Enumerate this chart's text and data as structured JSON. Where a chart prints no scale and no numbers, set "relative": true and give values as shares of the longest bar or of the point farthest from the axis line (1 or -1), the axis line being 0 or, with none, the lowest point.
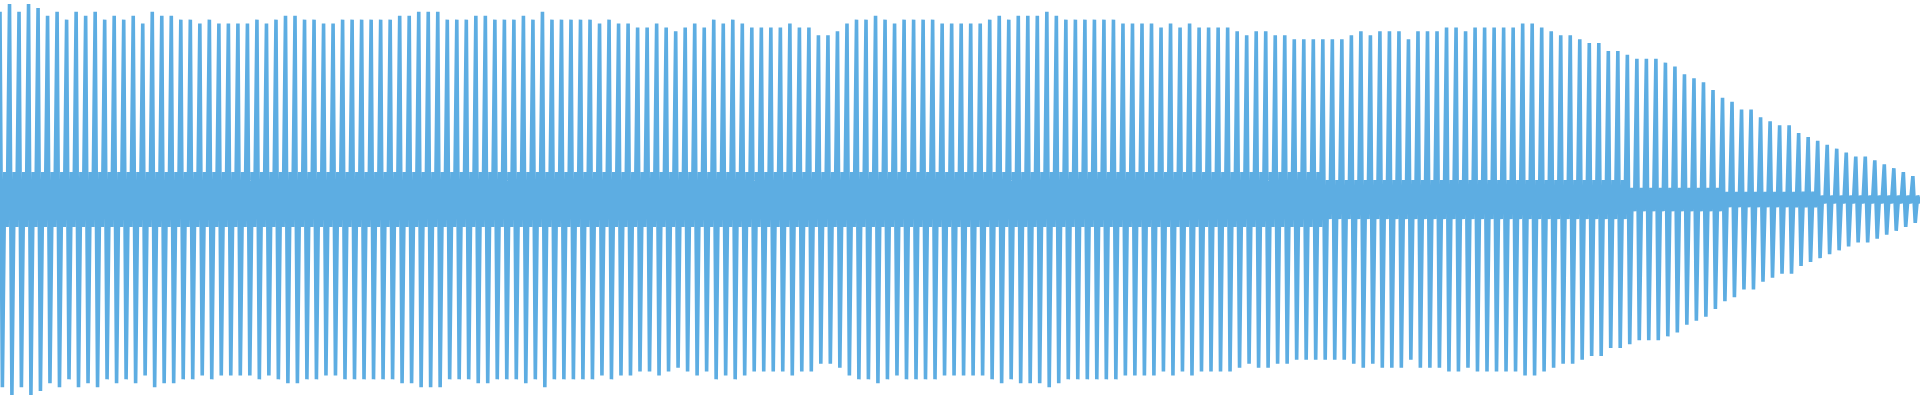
{
  "chart_data": {
    "type": "line",
    "relative": true,
    "categories": [
      null,
      null,
      null,
      null,
      null,
      null,
      null,
      null,
      null,
      null,
      null,
      null,
      null,
      null,
      null,
      null,
      null,
      null,
      null,
      null,
      null,
      null,
      null,
      null,
      null,
      null,
      null,
      null,
      null,
      null,
      null,
      null,
      null,
      null,
      null,
      null,
      null,
      null,
      null,
      null,
      null,
      null,
      null,
      null,
      null,
      null,
      null,
      null,
      null,
      null,
      null,
      null,
      null,
      null,
      null,
      null,
      null,
      null,
      null,
      null,
      null,
      null,
      null,
      null,
      null,
      null,
      null,
      null,
      null,
      null,
      null,
      null,
      null,
      null,
      null,
      null,
      null,
      null,
      null,
      null,
      null,
      null,
      null,
      null,
      null,
      null,
      null,
      null,
      null,
      null,
      null,
      null,
      null,
      null,
      null,
      null,
      null,
      null,
      null,
      null,
      null,
      null,
      null,
      null,
      null,
      null,
      null,
      null,
      null,
      null,
      null,
      null,
      null,
      null,
      null,
      null,
      null,
      null,
      null,
      null,
      null,
      null,
      null,
      null,
      null,
      null,
      null,
      null,
      null,
      null,
      null,
      null,
      null,
      null,
      null,
      null,
      null,
      null,
      null,
      null,
      null,
      null,
      null,
      null,
      null,
      null,
      null,
      null,
      null,
      null,
      null,
      null,
      null,
      null,
      null,
      null,
      null,
      null,
      null,
      null,
      null,
      null,
      null,
      null,
      null,
      null,
      null,
      null,
      null,
      null,
      null,
      null,
      null,
      null,
      null,
      null,
      null,
      null,
      null,
      null,
      null,
      null,
      null,
      null,
      null,
      null,
      null,
      null,
      null,
      null,
      null,
      null,
      null,
      null,
      null,
      null,
      null,
      null,
      null,
      null,
      null,
      null,
      null,
      null,
      null,
      null,
      null,
      null,
      null,
      null,
      null,
      null,
      null,
      null,
      null,
      null,
      null,
      null,
      null,
      null,
      null,
      null,
      null,
      null,
      null,
      null,
      null,
      null,
      null,
      null,
      null,
      null,
      null,
      null,
      null,
      null,
      null,
      null,
      null,
      null,
      null,
      null,
      null,
      null,
      null,
      null,
      null,
      null,
      null,
      null,
      null,
      null,
      null,
      null,
      null,
      null,
      null,
      null,
      null,
      null,
      null,
      null,
      null,
      null,
      null,
      null,
      null,
      null,
      null,
      null,
      null,
      null,
      null,
      null,
      null,
      null,
      null,
      null,
      null,
      null,
      null,
      null,
      null,
      null,
      null,
      null,
      null,
      null,
      null,
      null,
      null,
      null,
      null,
      null,
      null,
      null,
      null,
      null,
      null,
      null,
      null,
      null,
      null,
      null,
      null,
      null,
      null,
      null,
      null,
      null,
      null,
      null,
      null,
      null,
      null,
      null,
      null,
      null,
      null,
      null,
      null,
      null,
      null,
      null,
      null,
      null,
      null,
      null,
      null,
      null,
      null,
      null,
      null,
      null,
      null,
      null,
      null,
      null,
      null,
      null,
      null,
      null,
      null,
      null,
      null,
      null,
      null,
      null,
      null,
      null,
      null,
      null,
      null,
      null,
      null,
      null,
      null,
      null,
      null,
      null,
      null,
      null,
      null,
      null,
      null,
      null,
      null,
      null,
      null,
      null,
      null,
      null,
      null,
      null,
      null,
      null,
      null,
      null,
      null,
      null,
      null,
      null,
      null,
      null,
      null,
      null,
      null,
      null,
      null,
      null,
      null,
      null,
      null,
      null,
      null,
      null,
      null,
      null,
      null,
      null,
      null,
      null,
      null,
      null,
      null,
      null,
      null,
      null,
      null,
      null,
      null,
      null,
      null,
      null,
      null,
      null,
      null,
      null,
      null,
      null,
      null,
      null,
      null,
      null,
      null,
      null,
      null,
      null,
      null,
      null,
      null,
      null,
      null,
      null,
      null,
      null,
      null,
      null,
      null,
      null,
      null,
      null,
      null,
      null,
      null,
      null,
      null,
      null,
      null,
      null,
      null,
      null,
      null,
      null,
      null,
      null,
      null,
      null,
      null,
      null,
      null,
      null,
      null,
      null,
      null,
      null,
      null,
      null,
      null,
      null,
      null,
      null,
      null,
      null,
      null,
      null,
      null,
      null,
      null,
      null,
      null,
      null,
      null,
      null,
      null,
      null,
      null,
      null,
      null,
      null,
      null,
      null,
      null,
      null,
      null,
      null,
      null,
      null,
      null,
      null,
      null,
      null,
      null,
      null,
      null,
      null,
      null,
      null,
      null,
      null,
      null,
      null,
      null,
      null,
      null,
      null,
      null,
      null,
      null,
      null,
      null,
      null,
      null,
      null,
      null,
      null,
      null,
      null,
      null,
      null,
      null,
      null,
      null,
      null,
      null,
      null,
      null,
      null,
      null,
      null,
      null,
      null,
      null,
      null,
      null,
      null,
      null,
      null,
      null,
      null,
      null,
      null,
      null,
      null,
      null,
      null,
      null,
      null,
      null,
      null,
      null,
      null,
      null,
      null,
      null,
      null,
      null,
      null,
      null,
      null,
      null,
      null,
      null,
      null,
      null,
      null,
      null,
      null,
      null,
      null,
      null,
      null,
      null,
      null,
      null,
      null,
      null,
      null,
      null,
      null,
      null,
      null,
      null,
      null,
      null,
      null,
      null,
      null,
      null,
      null,
      null,
      null,
      null,
      null,
      null,
      null,
      null,
      null,
      null,
      null,
      null,
      null,
      null,
      null,
      null,
      null,
      null,
      null,
      null,
      null,
      null,
      null,
      null,
      null,
      null,
      null,
      null,
      null,
      null,
      null,
      null,
      null,
      null,
      null,
      null,
      null,
      null,
      null,
      null,
      null,
      null,
      null,
      null,
      null,
      null,
      null,
      null,
      null,
      null,
      null,
      null,
      null,
      null,
      null,
      null,
      null,
      null,
      null,
      null,
      null,
      null,
      null,
      null,
      null,
      null,
      null,
      null,
      null,
      null,
      null,
      null,
      null,
      null,
      null,
      null,
      null,
      null,
      null,
      null,
      null,
      null,
      null,
      null,
      null,
      null,
      null,
      null,
      null,
      null,
      null,
      null,
      null,
      null,
      null,
      null,
      null,
      null,
      null,
      null,
      null,
      null,
      null,
      null,
      null,
      null,
      null,
      null,
      null,
      null,
      null,
      null,
      null,
      null,
      null,
      null,
      null,
      null,
      null,
      null,
      null,
      null,
      null,
      null,
      null,
      null,
      null,
      null,
      null,
      null,
      null,
      null,
      null,
      null,
      null,
      null,
      null,
      null,
      null,
      null,
      null,
      null,
      null,
      null,
      null,
      null,
      null,
      null,
      null,
      null,
      null,
      null,
      null,
      null,
      null,
      null,
      null,
      null,
      null,
      null,
      null,
      null,
      null,
      null,
      null,
      null,
      null,
      null,
      null,
      null,
      null,
      null,
      null,
      null,
      null,
      null,
      null,
      null,
      null,
      null,
      null,
      null,
      null,
      null,
      null,
      null,
      null,
      null,
      null,
      null,
      null,
      null,
      null,
      null,
      null,
      null,
      null,
      null,
      null,
      null,
      null,
      null,
      null,
      null,
      null,
      null,
      null,
      null,
      null
    ],
    "series": [
      {
        "color": "#5dade2",
        "values": [
          0.98,
          0.02,
          0.57,
          0.43,
          1,
          0,
          0.57,
          0.43,
          0.98,
          0.02,
          0.57,
          0.43,
          1,
          0,
          0.57,
          0.43,
          0.99,
          0.01,
          0.57,
          0.43,
          0.97,
          0.03,
          0.57,
          0.43,
          0.98,
          0.02,
          0.57,
          0.43,
          0.96,
          0.04,
          0.57,
          0.43,
          0.98,
          0.02,
          0.57,
          0.43,
          0.97,
          0.03,
          0.57,
          0.43,
          0.98,
          0.02,
          0.57,
          0.43,
          0.96,
          0.04,
          0.57,
          0.43,
          0.97,
          0.03,
          0.57,
          0.43,
          0.96,
          0.04,
          0.57,
          0.43,
          0.97,
          0.03,
          0.57,
          0.43,
          0.95,
          0.05,
          0.57,
          0.43,
          0.98,
          0.02,
          0.57,
          0.43,
          0.97,
          0.03,
          0.57,
          0.43,
          0.97,
          0.03,
          0.57,
          0.43,
          0.96,
          0.04,
          0.57,
          0.43,
          0.96,
          0.04,
          0.57,
          0.43,
          0.95,
          0.05,
          0.57,
          0.43,
          0.96,
          0.04,
          0.57,
          0.43,
          0.95,
          0.05,
          0.57,
          0.43,
          0.95,
          0.05,
          0.57,
          0.43,
          0.95,
          0.05,
          0.57,
          0.43,
          0.95,
          0.05,
          0.57,
          0.43,
          0.96,
          0.04,
          0.57,
          0.43,
          0.95,
          0.05,
          0.57,
          0.43,
          0.96,
          0.04,
          0.57,
          0.43,
          0.97,
          0.03,
          0.57,
          0.43,
          0.97,
          0.03,
          0.57,
          0.43,
          0.96,
          0.04,
          0.57,
          0.43,
          0.96,
          0.04,
          0.57,
          0.43,
          0.95,
          0.05,
          0.57,
          0.43,
          0.95,
          0.05,
          0.57,
          0.43,
          0.96,
          0.04,
          0.57,
          0.43,
          0.96,
          0.04,
          0.57,
          0.43,
          0.96,
          0.04,
          0.57,
          0.43,
          0.96,
          0.04,
          0.57,
          0.43,
          0.96,
          0.04,
          0.57,
          0.43,
          0.96,
          0.04,
          0.57,
          0.43,
          0.97,
          0.03,
          0.57,
          0.43,
          0.97,
          0.03,
          0.57,
          0.43,
          0.98,
          0.02,
          0.57,
          0.43,
          0.98,
          0.02,
          0.57,
          0.43,
          0.98,
          0.02,
          0.57,
          0.43,
          0.96,
          0.04,
          0.57,
          0.43,
          0.96,
          0.04,
          0.57,
          0.43,
          0.96,
          0.04,
          0.57,
          0.43,
          0.97,
          0.03,
          0.57,
          0.43,
          0.97,
          0.03,
          0.57,
          0.43,
          0.96,
          0.04,
          0.57,
          0.43,
          0.96,
          0.04,
          0.57,
          0.43,
          0.96,
          0.04,
          0.57,
          0.43,
          0.97,
          0.03,
          0.57,
          0.43,
          0.96,
          0.04,
          0.57,
          0.43,
          0.98,
          0.02,
          0.57,
          0.43,
          0.96,
          0.04,
          0.57,
          0.43,
          0.96,
          0.04,
          0.57,
          0.43,
          0.96,
          0.04,
          0.57,
          0.43,
          0.96,
          0.04,
          0.57,
          0.43,
          0.96,
          0.04,
          0.57,
          0.43,
          0.95,
          0.05,
          0.57,
          0.43,
          0.96,
          0.04,
          0.57,
          0.43,
          0.95,
          0.05,
          0.57,
          0.43,
          0.95,
          0.05,
          0.57,
          0.43,
          0.94,
          0.06,
          0.57,
          0.43,
          0.94,
          0.06,
          0.57,
          0.43,
          0.95,
          0.05,
          0.57,
          0.43,
          0.94,
          0.06,
          0.57,
          0.43,
          0.93,
          0.07,
          0.57,
          0.43,
          0.94,
          0.06,
          0.57,
          0.43,
          0.95,
          0.05,
          0.57,
          0.43,
          0.94,
          0.06,
          0.57,
          0.43,
          0.96,
          0.04,
          0.57,
          0.43,
          0.95,
          0.05,
          0.57,
          0.43,
          0.96,
          0.04,
          0.57,
          0.43,
          0.95,
          0.05,
          0.57,
          0.43,
          0.94,
          0.06,
          0.57,
          0.43,
          0.94,
          0.06,
          0.57,
          0.43,
          0.94,
          0.06,
          0.57,
          0.43,
          0.94,
          0.06,
          0.57,
          0.43,
          0.95,
          0.05,
          0.57,
          0.43,
          0.94,
          0.06,
          0.57,
          0.43,
          0.94,
          0.06,
          0.57,
          0.43,
          0.92,
          0.08,
          0.57,
          0.43,
          0.92,
          0.08,
          0.57,
          0.43,
          0.93,
          0.07,
          0.57,
          0.43,
          0.95,
          0.05,
          0.57,
          0.43,
          0.96,
          0.04,
          0.57,
          0.43,
          0.96,
          0.04,
          0.57,
          0.43,
          0.97,
          0.03,
          0.57,
          0.43,
          0.96,
          0.04,
          0.57,
          0.43,
          0.95,
          0.05,
          0.57,
          0.43,
          0.96,
          0.04,
          0.57,
          0.43,
          0.96,
          0.04,
          0.57,
          0.43,
          0.96,
          0.04,
          0.57,
          0.43,
          0.96,
          0.04,
          0.57,
          0.43,
          0.95,
          0.05,
          0.57,
          0.43,
          0.95,
          0.05,
          0.57,
          0.43,
          0.95,
          0.05,
          0.57,
          0.43,
          0.95,
          0.05,
          0.57,
          0.43,
          0.95,
          0.05,
          0.57,
          0.43,
          0.96,
          0.04,
          0.57,
          0.43,
          0.97,
          0.03,
          0.57,
          0.43,
          0.96,
          0.04,
          0.57,
          0.43,
          0.97,
          0.03,
          0.57,
          0.43,
          0.97,
          0.03,
          0.57,
          0.43,
          0.97,
          0.03,
          0.57,
          0.43,
          0.98,
          0.02,
          0.57,
          0.43,
          0.97,
          0.03,
          0.57,
          0.43,
          0.96,
          0.04,
          0.57,
          0.43,
          0.96,
          0.04,
          0.57,
          0.43,
          0.96,
          0.04,
          0.57,
          0.43,
          0.96,
          0.04,
          0.57,
          0.43,
          0.96,
          0.04,
          0.57,
          0.43,
          0.96,
          0.04,
          0.57,
          0.43,
          0.95,
          0.05,
          0.57,
          0.43,
          0.95,
          0.05,
          0.57,
          0.43,
          0.95,
          0.05,
          0.57,
          0.43,
          0.95,
          0.05,
          0.57,
          0.43,
          0.94,
          0.06,
          0.57,
          0.43,
          0.95,
          0.05,
          0.57,
          0.43,
          0.94,
          0.06,
          0.57,
          0.43,
          0.95,
          0.05,
          0.57,
          0.43,
          0.94,
          0.06,
          0.57,
          0.43,
          0.94,
          0.06,
          0.57,
          0.43,
          0.94,
          0.06,
          0.57,
          0.43,
          0.94,
          0.06,
          0.57,
          0.43,
          0.93,
          0.07,
          0.57,
          0.43,
          0.92,
          0.08,
          0.57,
          0.43,
          0.93,
          0.07,
          0.57,
          0.43,
          0.93,
          0.07,
          0.57,
          0.43,
          0.92,
          0.08,
          0.57,
          0.43,
          0.92,
          0.08,
          0.57,
          0.43,
          0.91,
          0.09,
          0.57,
          0.43,
          0.91,
          0.09,
          0.57,
          0.43,
          0.91,
          0.09,
          0.57,
          0.43,
          0.91,
          0.09,
          0.55,
          0.45,
          0.91,
          0.09,
          0.55,
          0.45,
          0.91,
          0.09,
          0.55,
          0.45,
          0.92,
          0.08,
          0.55,
          0.45,
          0.93,
          0.07,
          0.55,
          0.45,
          0.92,
          0.08,
          0.55,
          0.45,
          0.93,
          0.07,
          0.55,
          0.45,
          0.93,
          0.07,
          0.55,
          0.45,
          0.93,
          0.07,
          0.55,
          0.45,
          0.91,
          0.09,
          0.55,
          0.45,
          0.93,
          0.07,
          0.55,
          0.45,
          0.93,
          0.07,
          0.55,
          0.45,
          0.93,
          0.07,
          0.55,
          0.45,
          0.94,
          0.06,
          0.55,
          0.45,
          0.94,
          0.06,
          0.55,
          0.45,
          0.93,
          0.07,
          0.55,
          0.45,
          0.94,
          0.06,
          0.55,
          0.45,
          0.94,
          0.06,
          0.55,
          0.45,
          0.94,
          0.06,
          0.55,
          0.45,
          0.94,
          0.06,
          0.55,
          0.45,
          0.94,
          0.06,
          0.55,
          0.45,
          0.95,
          0.05,
          0.55,
          0.45,
          0.95,
          0.05,
          0.55,
          0.45,
          0.94,
          0.06,
          0.55,
          0.45,
          0.93,
          0.07,
          0.55,
          0.45,
          0.92,
          0.08,
          0.55,
          0.45,
          0.92,
          0.08,
          0.55,
          0.45,
          0.91,
          0.09,
          0.55,
          0.45,
          0.9,
          0.1,
          0.55,
          0.45,
          0.9,
          0.1,
          0.55,
          0.45,
          0.88,
          0.12,
          0.55,
          0.45,
          0.88,
          0.12,
          0.55,
          0.45,
          0.87,
          0.13,
          0.53,
          0.47,
          0.86,
          0.14,
          0.53,
          0.47,
          0.86,
          0.14,
          0.53,
          0.47,
          0.86,
          0.14,
          0.53,
          0.47,
          0.85,
          0.15,
          0.53,
          0.47,
          0.84,
          0.16,
          0.53,
          0.47,
          0.82,
          0.18,
          0.53,
          0.47,
          0.81,
          0.19,
          0.53,
          0.47,
          0.8,
          0.2,
          0.53,
          0.47,
          0.78,
          0.22,
          0.53,
          0.47,
          0.76,
          0.24,
          0.52,
          0.48,
          0.75,
          0.25,
          0.52,
          0.48,
          0.73,
          0.27,
          0.52,
          0.48,
          0.73,
          0.27,
          0.52,
          0.48,
          0.71,
          0.29,
          0.52,
          0.48,
          0.7,
          0.3,
          0.52,
          0.48,
          0.69,
          0.31,
          0.52,
          0.48,
          0.69,
          0.31,
          0.52,
          0.48,
          0.67,
          0.33,
          0.52,
          0.48,
          0.66,
          0.34,
          0.52,
          0.48,
          0.65,
          0.35,
          0.51,
          0.49,
          0.64,
          0.36,
          0.51,
          0.49,
          0.63,
          0.37,
          0.51,
          0.49,
          0.62,
          0.38,
          0.51,
          0.49,
          0.61,
          0.39,
          0.51,
          0.49,
          0.61,
          0.39,
          0.51,
          0.49,
          0.6,
          0.4,
          0.51,
          0.49,
          0.59,
          0.41,
          0.51,
          0.49,
          0.58,
          0.42,
          0.51,
          0.49,
          0.57,
          0.43,
          0.51,
          0.49,
          0.56,
          0.44,
          0.51,
          0.49
        ]
      }
    ]
  }
}
